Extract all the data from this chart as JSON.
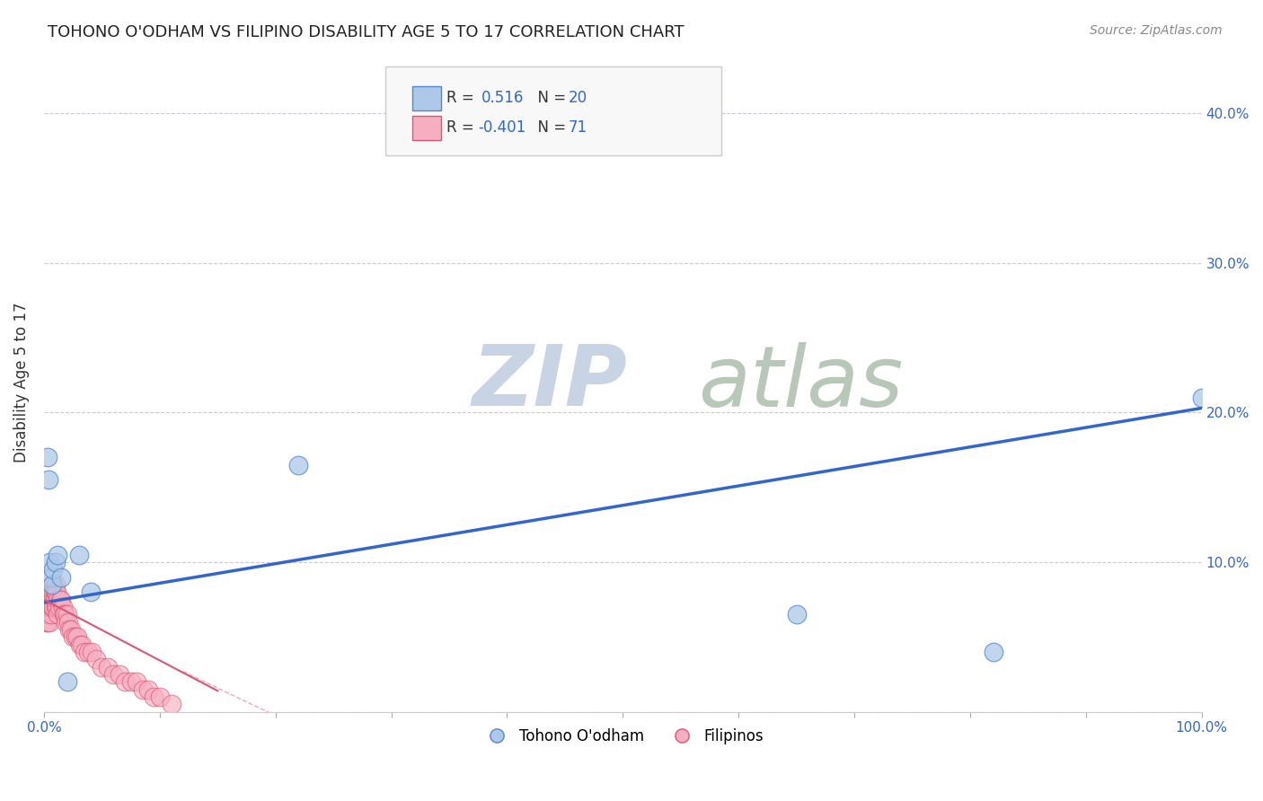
{
  "title": "TOHONO O'ODHAM VS FILIPINO DISABILITY AGE 5 TO 17 CORRELATION CHART",
  "source": "Source: ZipAtlas.com",
  "ylabel": "Disability Age 5 to 17",
  "xlim": [
    0.0,
    1.0
  ],
  "ylim": [
    0.0,
    0.44
  ],
  "xticks": [
    0.0,
    0.1,
    0.2,
    0.3,
    0.4,
    0.5,
    0.6,
    0.7,
    0.8,
    0.9,
    1.0
  ],
  "yticks": [
    0.0,
    0.1,
    0.2,
    0.3,
    0.4
  ],
  "ytick_labels": [
    "",
    "10.0%",
    "20.0%",
    "30.0%",
    "40.0%"
  ],
  "xtick_labels": [
    "0.0%",
    "",
    "",
    "",
    "",
    "",
    "",
    "",
    "",
    "",
    "100.0%"
  ],
  "background_color": "#ffffff",
  "grid_color": "#bbbbcc",
  "tohono_color": "#adc8e8",
  "filipino_color": "#f5afc0",
  "tohono_edge_color": "#5588cc",
  "filipino_edge_color": "#e05575",
  "line_blue_color": "#3366cc",
  "line_pink_color": "#dd5577",
  "watermark_zip_color": "#c8d8e8",
  "watermark_atlas_color": "#c8d8c8",
  "legend_box_color": "#f5f5f5",
  "legend_edge_color": "#cccccc",
  "legend_text_color": "#3366cc",
  "tohono_points_x": [
    0.003,
    0.004,
    0.005,
    0.006,
    0.007,
    0.008,
    0.01,
    0.012,
    0.015,
    0.02,
    0.03,
    0.04,
    0.22,
    0.65,
    0.82,
    1.0
  ],
  "tohono_points_y": [
    0.17,
    0.155,
    0.1,
    0.09,
    0.085,
    0.095,
    0.1,
    0.105,
    0.09,
    0.02,
    0.105,
    0.08,
    0.165,
    0.065,
    0.04,
    0.21
  ],
  "filipino_points_x": [
    0.001,
    0.001,
    0.001,
    0.001,
    0.002,
    0.002,
    0.002,
    0.002,
    0.003,
    0.003,
    0.003,
    0.003,
    0.004,
    0.004,
    0.004,
    0.004,
    0.005,
    0.005,
    0.005,
    0.005,
    0.006,
    0.006,
    0.006,
    0.006,
    0.007,
    0.007,
    0.007,
    0.008,
    0.008,
    0.008,
    0.009,
    0.009,
    0.01,
    0.01,
    0.01,
    0.011,
    0.011,
    0.012,
    0.012,
    0.013,
    0.014,
    0.015,
    0.016,
    0.017,
    0.018,
    0.019,
    0.02,
    0.021,
    0.022,
    0.023,
    0.025,
    0.027,
    0.029,
    0.031,
    0.033,
    0.035,
    0.038,
    0.041,
    0.045,
    0.05,
    0.055,
    0.06,
    0.065,
    0.07,
    0.075,
    0.08,
    0.085,
    0.09,
    0.095,
    0.1,
    0.11
  ],
  "filipino_points_y": [
    0.075,
    0.08,
    0.07,
    0.065,
    0.075,
    0.07,
    0.065,
    0.06,
    0.075,
    0.07,
    0.065,
    0.06,
    0.08,
    0.075,
    0.07,
    0.065,
    0.08,
    0.075,
    0.07,
    0.06,
    0.08,
    0.075,
    0.07,
    0.065,
    0.08,
    0.075,
    0.07,
    0.085,
    0.08,
    0.07,
    0.08,
    0.075,
    0.085,
    0.08,
    0.07,
    0.08,
    0.07,
    0.075,
    0.065,
    0.07,
    0.075,
    0.075,
    0.07,
    0.065,
    0.065,
    0.06,
    0.065,
    0.06,
    0.055,
    0.055,
    0.05,
    0.05,
    0.05,
    0.045,
    0.045,
    0.04,
    0.04,
    0.04,
    0.035,
    0.03,
    0.03,
    0.025,
    0.025,
    0.02,
    0.02,
    0.02,
    0.015,
    0.015,
    0.01,
    0.01,
    0.005
  ],
  "blue_line_x": [
    0.0,
    1.0
  ],
  "blue_line_y": [
    0.073,
    0.203
  ],
  "pink_line_x": [
    0.0,
    0.15
  ],
  "pink_line_y": [
    0.075,
    0.014
  ]
}
